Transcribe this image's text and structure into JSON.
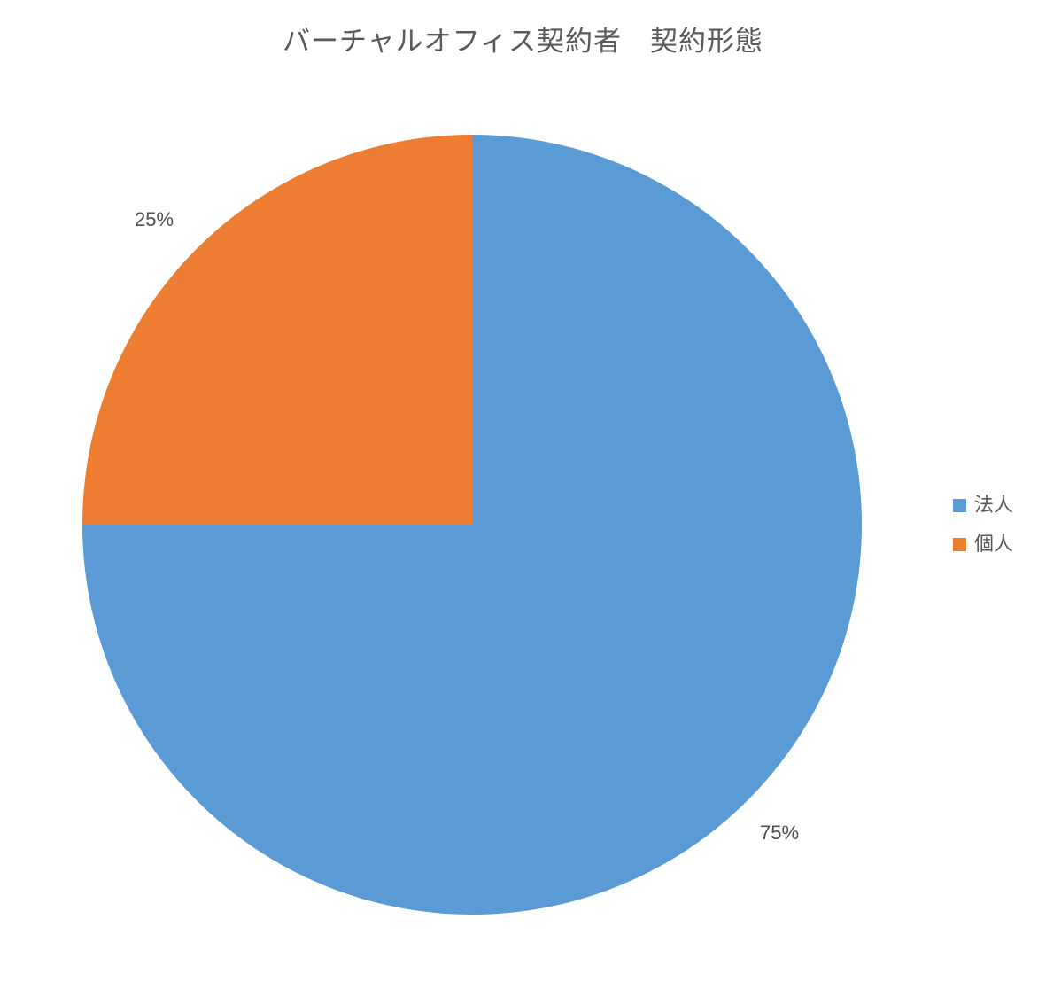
{
  "page": {
    "background_color": "#ffffff",
    "text_color": "#595959"
  },
  "chart_data": {
    "type": "pie",
    "title": "バーチャルオフィス契約者　契約形態",
    "categories": [
      "法人",
      "個人"
    ],
    "values": [
      75,
      25
    ],
    "labels": [
      "75%",
      "25%"
    ],
    "colors": [
      "#5B9BD5",
      "#ED7D31"
    ],
    "label_color": "#4f4f4f",
    "title_color": "#595959",
    "legend_position": "right",
    "start_angle_deg": 0,
    "direction": "clockwise",
    "label_placement": "outside-end"
  }
}
